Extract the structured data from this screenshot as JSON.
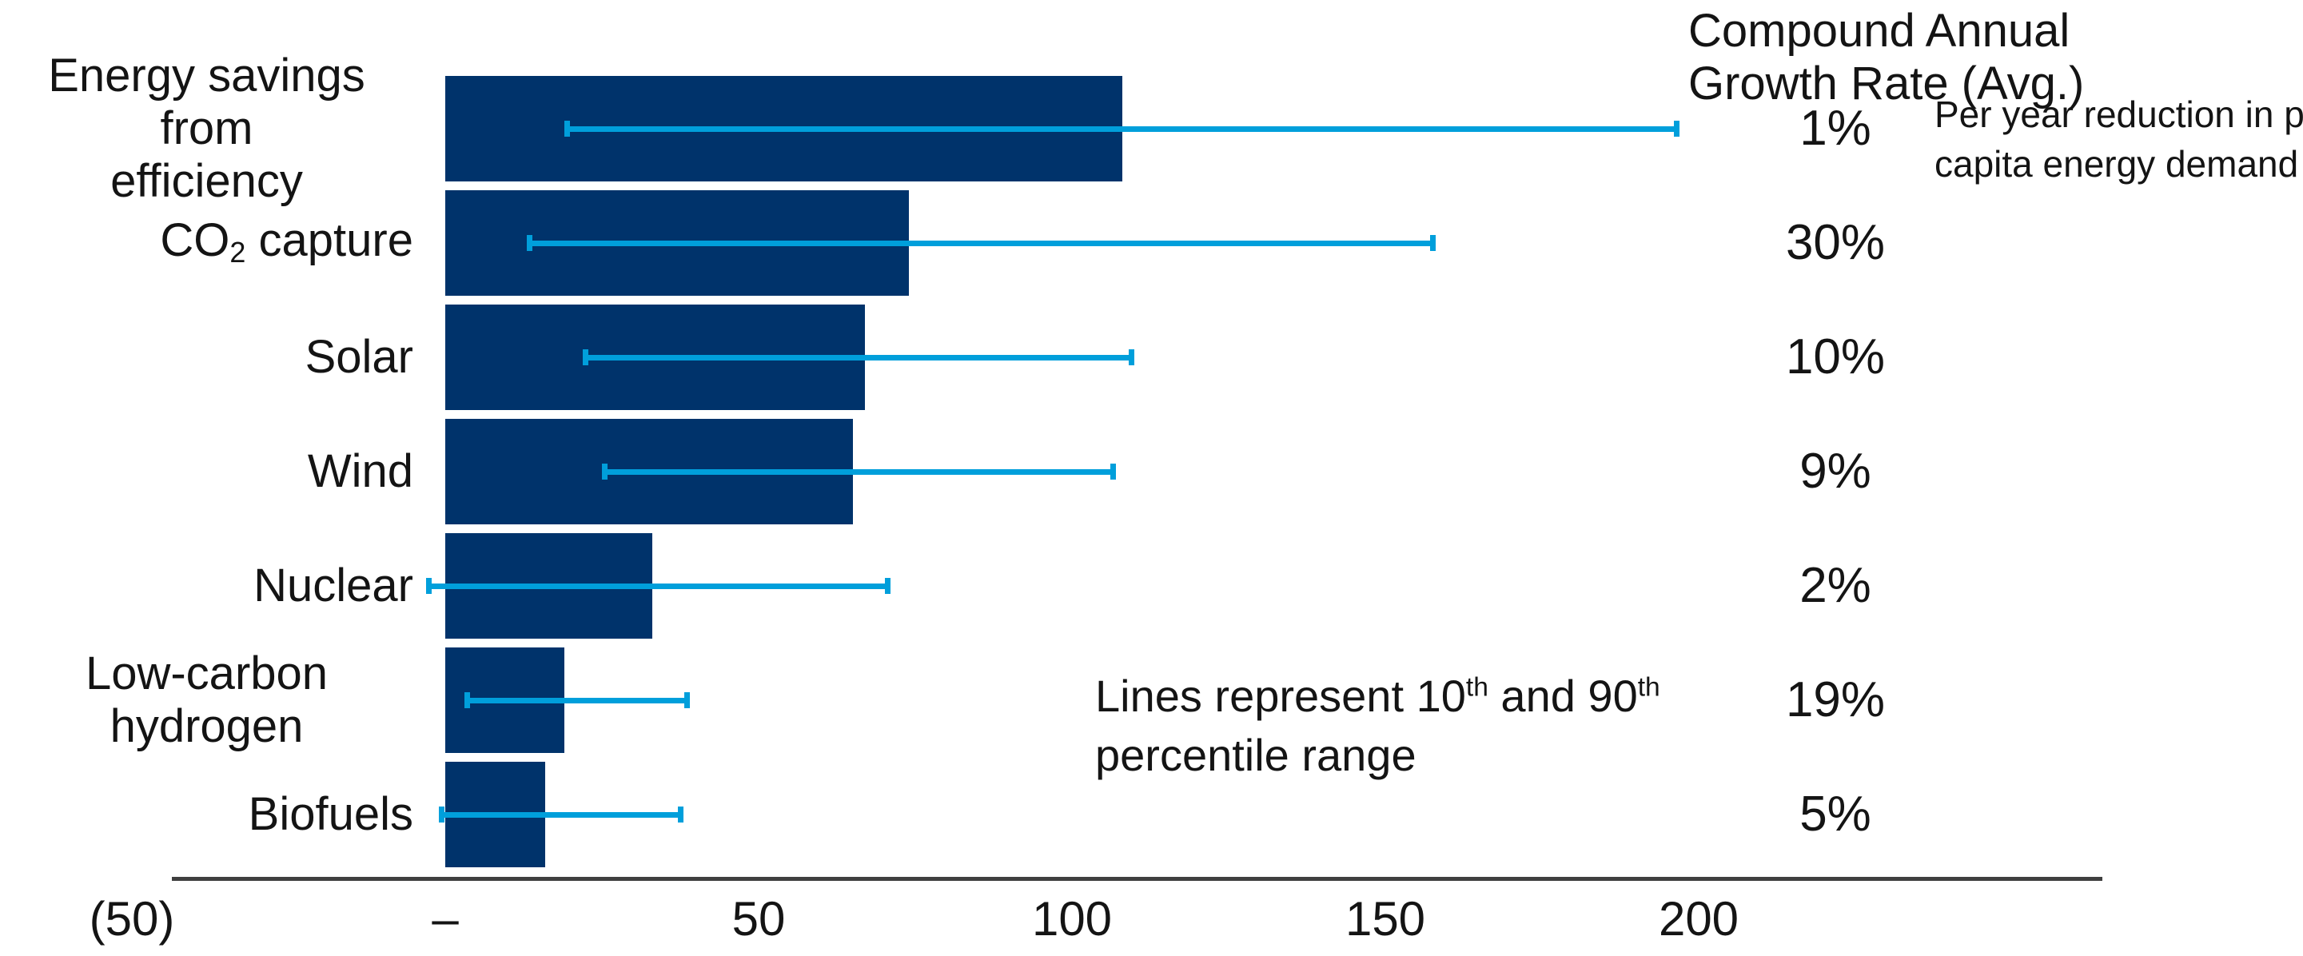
{
  "header": {
    "cagr_title_line1": "Compound Annual",
    "cagr_title_line2": "Growth Rate (Avg.)"
  },
  "annotation": {
    "line1_pre": "Lines represent 10",
    "sup1": "th",
    "line1_mid": " and 90",
    "sup2": "th",
    "line2": "percentile range"
  },
  "side_note": {
    "line1": "Per year reduction in per",
    "line2": "capita energy demand"
  },
  "colors": {
    "bar": "#00336b",
    "whisker": "#009fdb",
    "axis": "#3f3f3f",
    "text": "#141414"
  },
  "chart_data": {
    "type": "bar",
    "orientation": "horizontal",
    "title": "",
    "xlabel": "",
    "ylabel": "",
    "xlim": [
      -50,
      200
    ],
    "grid": false,
    "legend": "none",
    "whisker_note": "Lines represent 10th and 90th percentile range",
    "cagr_header": "Compound Annual Growth Rate (Avg.)",
    "x_ticks": [
      {
        "value": -50,
        "label": "(50)"
      },
      {
        "value": 0,
        "label": "–"
      },
      {
        "value": 50,
        "label": "50"
      },
      {
        "value": 100,
        "label": "100"
      },
      {
        "value": 150,
        "label": "150"
      },
      {
        "value": 200,
        "label": "200"
      }
    ],
    "rows": [
      {
        "category": "Energy savings from efficiency",
        "category_lines": [
          "Energy savings from",
          "efficiency"
        ],
        "value": 108,
        "p10": 19,
        "p90": 197,
        "cagr": "1%",
        "note": "Per year reduction in per capita energy demand"
      },
      {
        "category": "CO2 capture",
        "category_parts": [
          {
            "text": "CO"
          },
          {
            "sub": "2"
          },
          {
            "text": " capture"
          }
        ],
        "value": 74,
        "p10": 13,
        "p90": 158,
        "cagr": "30%"
      },
      {
        "category": "Solar",
        "value": 67,
        "p10": 22,
        "p90": 110,
        "cagr": "10%"
      },
      {
        "category": "Wind",
        "value": 65,
        "p10": 25,
        "p90": 107,
        "cagr": "9%"
      },
      {
        "category": "Nuclear",
        "value": 33,
        "p10": -3,
        "p90": 71,
        "cagr": "2%"
      },
      {
        "category": "Low-carbon hydrogen",
        "value": 19,
        "p10": 3,
        "p90": 39,
        "cagr": "19%"
      },
      {
        "category": "Biofuels",
        "value": 16,
        "p10": -1,
        "p90": 38,
        "cagr": "5%"
      }
    ]
  }
}
